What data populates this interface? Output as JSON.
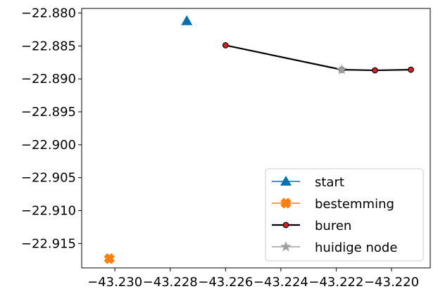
{
  "chart_data": {
    "type": "scatter",
    "title": "",
    "xlabel": "",
    "ylabel": "",
    "xlim": [
      -43.2312,
      -43.2186
    ],
    "ylim": [
      -22.9187,
      -22.8793
    ],
    "x_ticks": [
      -43.23,
      -43.228,
      -43.226,
      -43.224,
      -43.222,
      -43.22
    ],
    "x_tick_labels": [
      "−43.230",
      "−43.228",
      "−43.226",
      "−43.224",
      "−43.222",
      "−43.220"
    ],
    "y_ticks": [
      -22.88,
      -22.885,
      -22.89,
      -22.895,
      -22.9,
      -22.905,
      -22.91,
      -22.915
    ],
    "y_tick_labels": [
      "−22.880",
      "−22.885",
      "−22.890",
      "−22.895",
      "−22.900",
      "−22.905",
      "−22.910",
      "−22.915"
    ],
    "grid": false,
    "legend_position": "lower-right",
    "series": [
      {
        "name": "start",
        "marker": "triangle-up",
        "color": "#0072b2",
        "points": [
          [
            -43.2274,
            -22.8812
          ]
        ]
      },
      {
        "name": "bestemming",
        "marker": "x-filled",
        "color": "#ff7f0e",
        "points": [
          [
            -43.2302,
            -22.9173
          ]
        ]
      },
      {
        "name": "buren",
        "marker": "circle",
        "color": "#000000",
        "marker_fill": "#e41a1c",
        "points": [
          [
            -43.226,
            -22.8849
          ],
          [
            -43.2218,
            -22.8886
          ],
          [
            -43.2206,
            -22.8887
          ],
          [
            -43.2193,
            -22.8886
          ]
        ]
      },
      {
        "name": "huidige node",
        "marker": "star",
        "color": "#a0a0a0",
        "points": [
          [
            -43.2218,
            -22.8886
          ]
        ]
      }
    ]
  }
}
